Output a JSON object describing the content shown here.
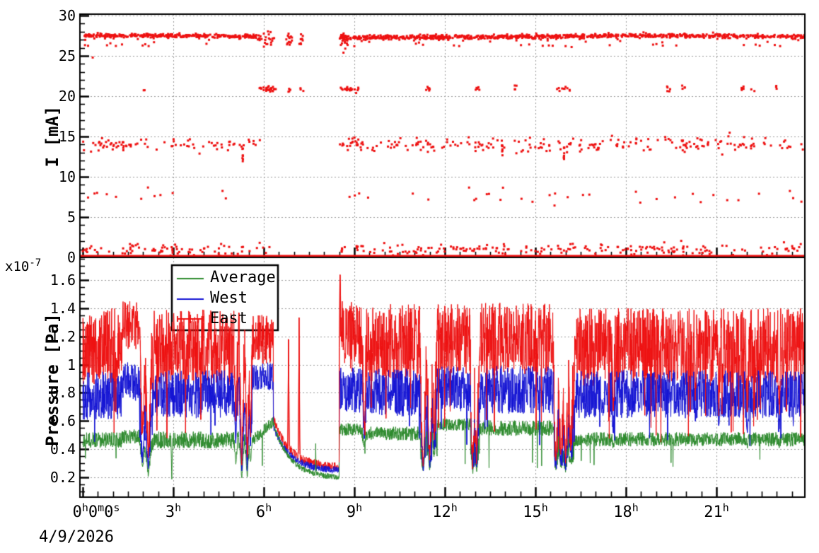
{
  "figure": {
    "background": "#ffffff",
    "frame_color": "#000000",
    "grid_color": "#999999",
    "date_label": "4/9/2026"
  },
  "x_axis": {
    "range_h": [
      0,
      24
    ],
    "major_step_h": 3,
    "minor_step_h": 0.5,
    "date_label": "4/9/2026",
    "ticks": [
      {
        "t": 0,
        "dx": 19,
        "parts": [
          [
            "0",
            "h"
          ],
          [
            "0",
            "m"
          ],
          [
            "0",
            "s"
          ]
        ]
      },
      {
        "t": 3,
        "parts": [
          [
            "3",
            "h"
          ]
        ]
      },
      {
        "t": 6,
        "parts": [
          [
            "6",
            "h"
          ]
        ]
      },
      {
        "t": 9,
        "parts": [
          [
            "9",
            "h"
          ]
        ]
      },
      {
        "t": 12,
        "parts": [
          [
            "12",
            "h"
          ]
        ]
      },
      {
        "t": 15,
        "parts": [
          [
            "15",
            "h"
          ]
        ]
      },
      {
        "t": 18,
        "parts": [
          [
            "18",
            "h"
          ]
        ]
      },
      {
        "t": 21,
        "parts": [
          [
            "21",
            "h"
          ]
        ]
      }
    ]
  },
  "legend": {
    "entries": [
      {
        "label": "Average",
        "color": "#2e8b2e",
        "style": "line"
      },
      {
        "label": "West",
        "color": "#1414d4",
        "style": "line"
      },
      {
        "label": "East",
        "color": "#ee1111",
        "style": "errorbar"
      }
    ]
  },
  "chart_data": [
    {
      "id": "beam-current",
      "type": "scatter",
      "ylabel": "I [mA]",
      "ylim": [
        0,
        30.18
      ],
      "yticks": [
        {
          "v": 0,
          "label": "0"
        },
        {
          "v": 5,
          "label": "5"
        },
        {
          "v": 10,
          "label": "10"
        },
        {
          "v": 15,
          "label": "15"
        },
        {
          "v": 20,
          "label": "20"
        },
        {
          "v": 25,
          "label": "25"
        },
        {
          "v": 30,
          "label": "30"
        }
      ],
      "y_minor_step": 1,
      "grid": true,
      "marker": {
        "color": "#ee1111",
        "size": 3
      },
      "baseline": {
        "level": 0.12,
        "line_width": 4.5
      },
      "beam_off_gap_h": [
        5.9,
        8.5
      ],
      "bands": [
        {
          "name": "main-27.4mA",
          "level": 27.4,
          "spread": 0.13,
          "drift": 0.1,
          "density": 55,
          "segments": [
            [
              0,
              5.85
            ],
            [
              8.55,
              23.94
            ]
          ],
          "outliers": {
            "per_hour": 2.0,
            "min": 26.2,
            "max": 27.0
          },
          "extra_points": [
            [
              0.33,
              24.8
            ],
            [
              8.64,
              25.4
            ],
            [
              8.7,
              25.9
            ],
            [
              22.3,
              26.4
            ],
            [
              9.0,
              26.2
            ],
            [
              16.2,
              26.1
            ],
            [
              4.1,
              26.5
            ],
            [
              12.3,
              26.3
            ],
            [
              18.9,
              26.4
            ]
          ]
        },
        {
          "name": "rampdown-27",
          "level": 27.1,
          "spread": 0.4,
          "density": 40,
          "segments": [
            [
              5.8,
              6.35
            ]
          ],
          "clusters": [
            [
              6.73,
              6.95,
              14
            ],
            [
              7.15,
              7.3,
              9
            ],
            [
              8.5,
              8.78,
              26
            ]
          ]
        },
        {
          "name": "21mA-clusters",
          "level": 20.9,
          "spread": 0.18,
          "clusters": [
            [
              2.0,
              2.1,
              2
            ],
            [
              5.86,
              6.4,
              26
            ],
            [
              6.78,
              6.9,
              4
            ],
            [
              7.2,
              7.32,
              3
            ],
            [
              8.55,
              9.15,
              22
            ],
            [
              11.3,
              11.55,
              6
            ],
            [
              13.0,
              13.2,
              5
            ],
            [
              14.25,
              14.4,
              4
            ],
            [
              15.7,
              16.2,
              10
            ],
            [
              19.35,
              19.55,
              5
            ],
            [
              19.85,
              20.0,
              4
            ],
            [
              21.8,
              22.3,
              8
            ],
            [
              22.85,
              23.0,
              3
            ]
          ]
        },
        {
          "name": "14mA-scatter",
          "level": 14.0,
          "spread": 0.45,
          "density": 14,
          "segments": [
            [
              0,
              5.9
            ],
            [
              8.5,
              23.94
            ]
          ],
          "clusters": [
            [
              8.55,
              9.3,
              14
            ]
          ],
          "streaks": [
            [
              5.3,
              11.8,
              13.6
            ],
            [
              13.9,
              12.6,
              13.9
            ],
            [
              15.95,
              12.1,
              13.9
            ]
          ]
        },
        {
          "name": "7.6mA-sparse",
          "level": 7.6,
          "spread": 0.5,
          "density": 2.2,
          "segments": [
            [
              0,
              5.6
            ],
            [
              8.6,
              23.94
            ]
          ]
        },
        {
          "name": "1mA-scatter",
          "level": 0.95,
          "spread": 0.4,
          "density": 13,
          "segments": [
            [
              0,
              6.2
            ],
            [
              8.55,
              23.94
            ]
          ]
        }
      ]
    },
    {
      "id": "pressure",
      "type": "line",
      "ylabel": "Pressure [Pa]",
      "scale_mantissa": "x10",
      "scale_exponent": "-7",
      "ylim": [
        0.06,
        1.76
      ],
      "yticks": [
        {
          "v": 0.2,
          "label": "0.2"
        },
        {
          "v": 0.4,
          "label": "0.4"
        },
        {
          "v": 0.6,
          "label": "0.6"
        },
        {
          "v": 0.8,
          "label": "0.8"
        },
        {
          "v": 1.0,
          "label": "1"
        },
        {
          "v": 1.2,
          "label": "1.2"
        },
        {
          "v": 1.4,
          "label": "1.4"
        },
        {
          "v": 1.6,
          "label": "1.6"
        }
      ],
      "y_minor_step": 0.05,
      "grid": true,
      "series": [
        {
          "name": "Average",
          "key": "avg",
          "color": "#2e8b2e"
        },
        {
          "name": "West",
          "key": "west",
          "color": "#1414d4"
        },
        {
          "name": "East",
          "key": "east",
          "color": "#ee1111"
        }
      ],
      "draw_order": [
        "east",
        "west",
        "avg"
      ],
      "sample_step_h": 0.008,
      "segments": [
        {
          "t": [
            0,
            1.3
          ],
          "east": [
            1.13,
            0.27
          ],
          "west": [
            0.78,
            0.17
          ],
          "avg": [
            0.465,
            0.055
          ]
        },
        {
          "t": [
            1.3,
            1.92
          ],
          "east": [
            1.28,
            0.17
          ],
          "west": [
            0.88,
            0.14
          ],
          "avg": [
            0.49,
            0.05
          ]
        },
        {
          "t": [
            1.92,
            2.35
          ],
          "east": [
            1.05,
            0.3
          ],
          "west": [
            0.7,
            0.2
          ],
          "avg": [
            0.44,
            0.06
          ]
        },
        {
          "t": [
            2.35,
            5.2
          ],
          "east": [
            1.12,
            0.27
          ],
          "west": [
            0.79,
            0.17
          ],
          "avg": [
            0.465,
            0.06
          ]
        },
        {
          "t": [
            5.2,
            5.62
          ],
          "east": [
            1.08,
            0.27
          ],
          "west": [
            0.72,
            0.18
          ],
          "avg": [
            0.45,
            0.06
          ]
        },
        {
          "t": [
            5.62,
            6.32
          ],
          "east": [
            1.18,
            0.18
          ],
          "west": [
            0.92,
            0.1
          ],
          "avg": [
            0.46,
            0.04
          ],
          "avg_end": 0.6,
          "shape": "lin"
        },
        {
          "t": [
            6.32,
            8.5
          ],
          "east": [
            0.62,
            0.03
          ],
          "west": [
            0.56,
            0.025
          ],
          "avg": [
            0.58,
            0.02
          ],
          "east_end": 0.27,
          "west_end": 0.245,
          "avg_end": 0.195,
          "shape": "exp",
          "tau": 0.55,
          "calm": true
        },
        {
          "t": [
            8.5,
            9.25
          ],
          "east": [
            1.2,
            0.25
          ],
          "west": [
            0.82,
            0.16
          ],
          "avg": [
            0.54,
            0.045
          ]
        },
        {
          "t": [
            9.25,
            11.2
          ],
          "east": [
            1.15,
            0.28
          ],
          "west": [
            0.8,
            0.17
          ],
          "avg": [
            0.51,
            0.05
          ]
        },
        {
          "t": [
            11.2,
            11.75
          ],
          "east": [
            0.9,
            0.35
          ],
          "west": [
            0.6,
            0.25
          ],
          "avg": [
            0.45,
            0.1
          ]
        },
        {
          "t": [
            11.75,
            12.85
          ],
          "east": [
            1.18,
            0.25
          ],
          "west": [
            0.83,
            0.16
          ],
          "avg": [
            0.575,
            0.045
          ]
        },
        {
          "t": [
            12.85,
            13.15
          ],
          "east": [
            0.85,
            0.35
          ],
          "west": [
            0.55,
            0.25
          ],
          "avg": [
            0.42,
            0.1
          ]
        },
        {
          "t": [
            13.15,
            15.62
          ],
          "east": [
            1.18,
            0.26
          ],
          "west": [
            0.82,
            0.17
          ],
          "avg": [
            0.55,
            0.055
          ]
        },
        {
          "t": [
            15.62,
            16.3
          ],
          "east": [
            0.75,
            0.35
          ],
          "west": [
            0.5,
            0.22
          ],
          "avg": [
            0.4,
            0.1
          ]
        },
        {
          "t": [
            16.3,
            23.94
          ],
          "east": [
            1.12,
            0.28
          ],
          "west": [
            0.79,
            0.17
          ],
          "avg": [
            0.47,
            0.05
          ]
        }
      ],
      "dips": [
        {
          "t": 1.98,
          "w": 0.1,
          "east": 0.5,
          "west": 0.3,
          "avg": 0.28
        },
        {
          "t": 2.17,
          "w": 0.12,
          "east": 0.35,
          "west": 0.25,
          "avg": 0.22
        },
        {
          "t": 2.95,
          "w": 0.03,
          "east": null,
          "west": null,
          "avg": 0.18
        },
        {
          "t": 5.07,
          "w": 0.06,
          "east": 0.6,
          "west": 0.45,
          "avg": 0.3
        },
        {
          "t": 5.27,
          "w": 0.08,
          "east": 0.25,
          "west": 0.22,
          "avg": 0.2
        },
        {
          "t": 5.45,
          "w": 0.08,
          "east": 0.3,
          "west": 0.25,
          "avg": 0.2
        },
        {
          "t": 5.56,
          "w": 0.05,
          "east": 0.5,
          "west": 0.4,
          "avg": 0.3
        },
        {
          "t": 9.33,
          "w": 0.07,
          "east": 0.5,
          "west": 0.45,
          "avg": 0.42
        },
        {
          "t": 11.28,
          "w": 0.1,
          "east": 0.28,
          "west": 0.25,
          "avg": 0.23
        },
        {
          "t": 11.5,
          "w": 0.09,
          "east": 0.3,
          "west": 0.26,
          "avg": 0.24
        },
        {
          "t": 11.65,
          "w": 0.06,
          "east": 0.45,
          "west": 0.4,
          "avg": 0.35
        },
        {
          "t": 12.92,
          "w": 0.08,
          "east": 0.28,
          "west": 0.25,
          "avg": 0.23
        },
        {
          "t": 13.05,
          "w": 0.07,
          "east": 0.3,
          "west": 0.27,
          "avg": 0.24
        },
        {
          "t": 15.68,
          "w": 0.08,
          "east": 0.3,
          "west": 0.27,
          "avg": 0.25
        },
        {
          "t": 15.85,
          "w": 0.09,
          "east": 0.35,
          "west": 0.3,
          "avg": 0.27
        },
        {
          "t": 16.0,
          "w": 0.08,
          "east": 0.3,
          "west": 0.27,
          "avg": 0.24
        },
        {
          "t": 16.17,
          "w": 0.07,
          "east": 0.4,
          "west": 0.35,
          "avg": 0.3
        },
        {
          "t": 17.58,
          "w": 0.05,
          "east": 0.6,
          "west": 0.5,
          "avg": 0.42
        },
        {
          "t": 20.3,
          "w": 0.04,
          "east": 0.75,
          "west": 0.6,
          "avg": 0.44
        },
        {
          "t": 21.08,
          "w": 0.04,
          "east": 0.65,
          "west": 0.55,
          "avg": 0.43
        },
        {
          "t": 22.02,
          "w": 0.05,
          "east": 0.62,
          "west": 0.5,
          "avg": 0.42
        },
        {
          "t": 23.08,
          "w": 0.04,
          "east": 0.7,
          "west": 0.55,
          "avg": 0.43
        }
      ],
      "spikes": [
        {
          "series": "east",
          "t": 6.82,
          "w": 0.025,
          "peak": 1.32
        },
        {
          "series": "east",
          "t": 7.17,
          "w": 0.025,
          "peak": 1.42
        },
        {
          "series": "east",
          "t": 8.53,
          "w": 0.03,
          "peak": 1.68
        },
        {
          "series": "avg",
          "t": 7.72,
          "w": 0.012,
          "peak": 0.44
        }
      ],
      "flicker": {
        "east": {
          "p": 0.014,
          "lo": 0.45,
          "hi": 0.7
        },
        "west": {
          "p": 0.008,
          "lo": 0.42,
          "hi": 0.58
        },
        "avg": {
          "p": 0.006,
          "lo": 0.26,
          "hi": 0.36
        }
      }
    }
  ]
}
